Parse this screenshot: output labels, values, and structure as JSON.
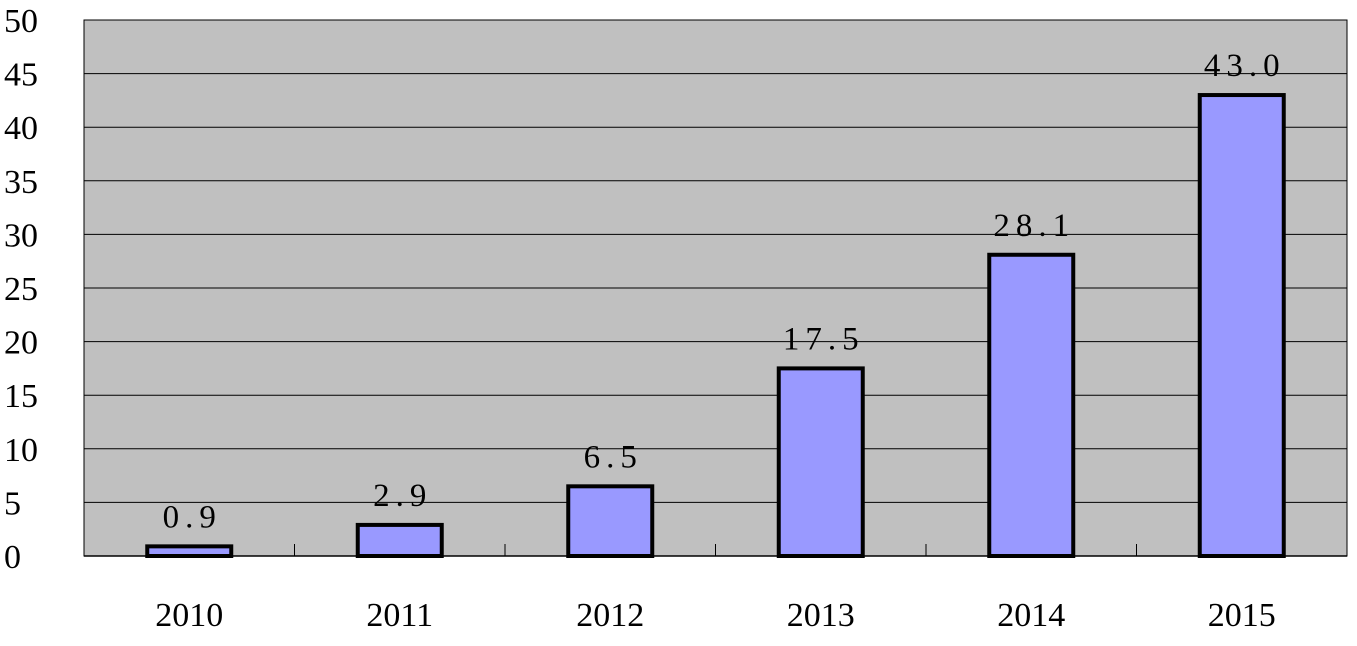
{
  "chart_data": {
    "type": "bar",
    "title": "",
    "xlabel": "",
    "ylabel": "",
    "categories": [
      "2010",
      "2011",
      "2012",
      "2013",
      "2014",
      "2015"
    ],
    "values": [
      0.9,
      2.9,
      6.5,
      17.5,
      28.1,
      43.0
    ],
    "data_labels": [
      "0.9",
      "2.9",
      "6.5",
      "17.5",
      "28.1",
      "43.0"
    ],
    "ylim": [
      0,
      50
    ],
    "y_ticks": [
      "0",
      "5",
      "10",
      "15",
      "20",
      "25",
      "30",
      "35",
      "40",
      "45",
      "50"
    ],
    "grid": true,
    "legend": "none",
    "colors": {
      "plot_background": "#c0c0c0",
      "bar_fill": "#9999ff",
      "bar_stroke": "#000000",
      "grid": "#000000"
    }
  }
}
